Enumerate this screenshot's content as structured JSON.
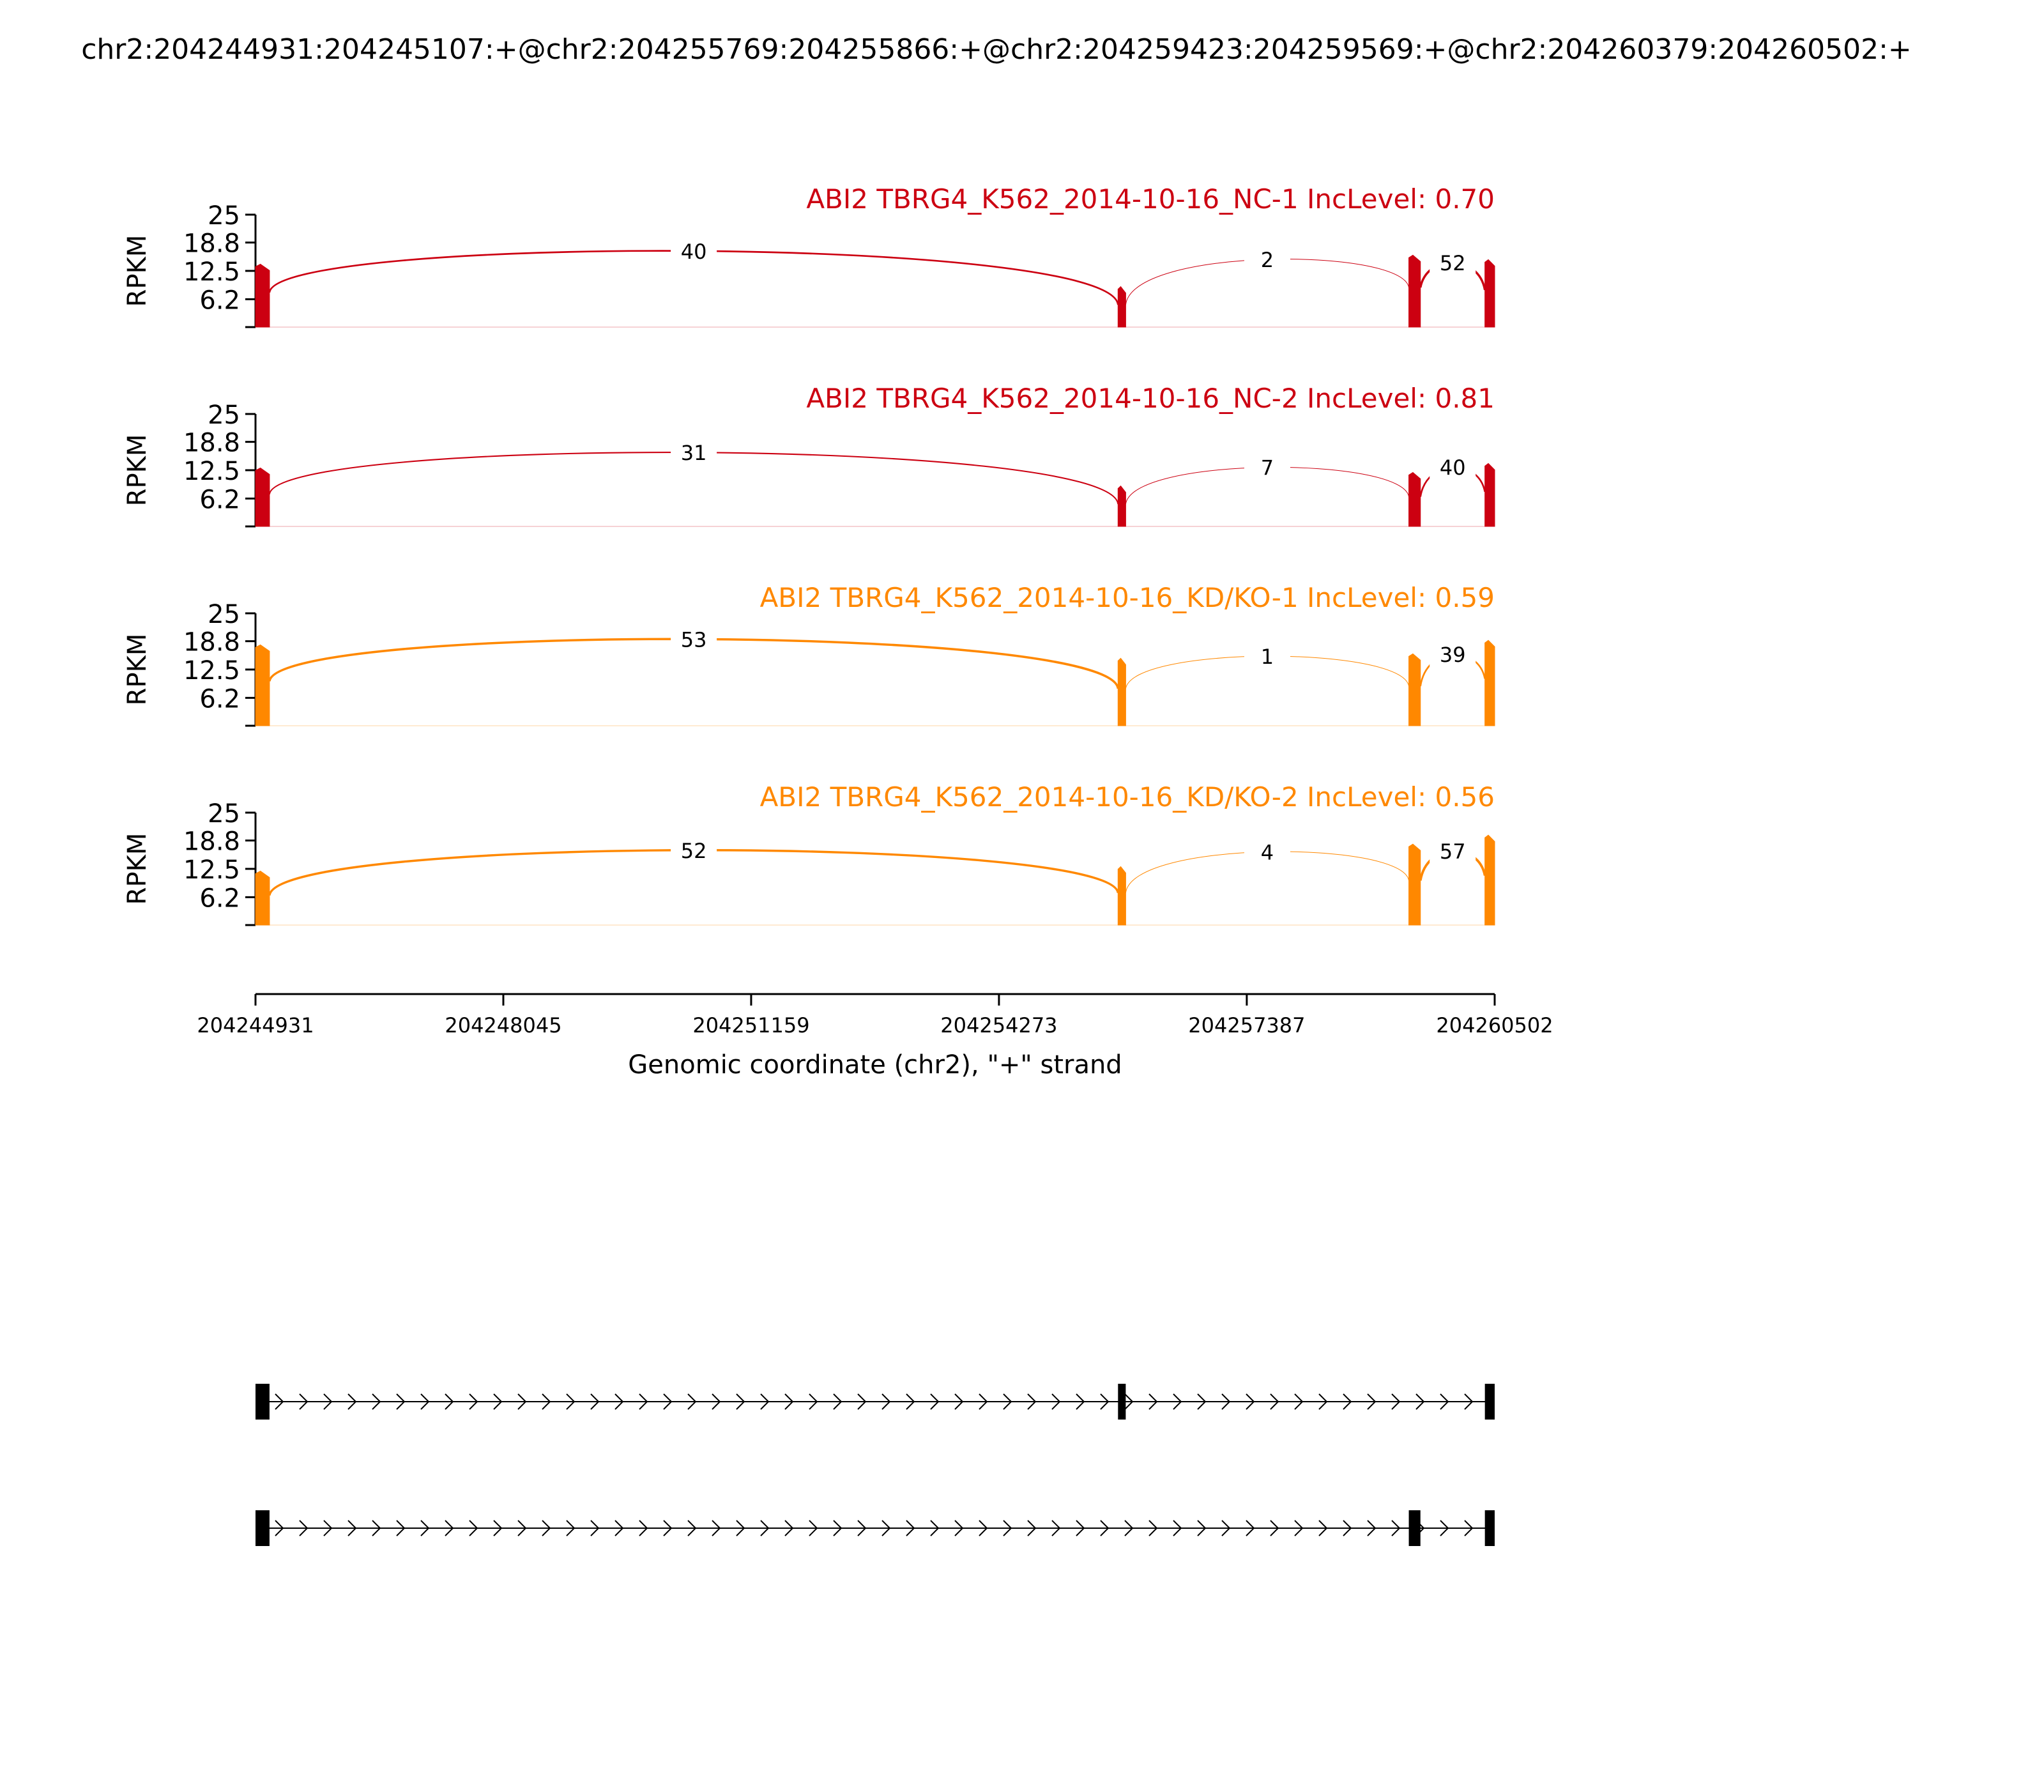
{
  "figure_title": "chr2:204244931:204245107:+@chr2:204255769:204255866:+@chr2:204259423:204259569:+@chr2:204260379:204260502:+",
  "colors": {
    "nc": "#cc0011",
    "kd": "#ff8800",
    "axis": "#000000"
  },
  "chart_data": {
    "type": "sashimi",
    "ylabel": "RPKM",
    "yticks": [
      6.2,
      12.5,
      18.8,
      25
    ],
    "ylim": [
      0,
      25
    ],
    "xlim": [
      204244931,
      204260502
    ],
    "xticks": [
      204244931,
      204248045,
      204251159,
      204254273,
      204257387,
      204260502
    ],
    "xlabel": "Genomic coordinate (chr2), \"+\" strand",
    "exons": [
      {
        "start": 204244931,
        "end": 204245107
      },
      {
        "start": 204255769,
        "end": 204255866
      },
      {
        "start": 204259423,
        "end": 204259569
      },
      {
        "start": 204260379,
        "end": 204260502
      }
    ],
    "panels": [
      {
        "label": "ABI2 TBRG4_K562_2014-10-16_NC-1 IncLevel: 0.70",
        "group": "nc",
        "exon_peaks": [
          14,
          9,
          16,
          15
        ],
        "junctions": [
          {
            "from": 204245107,
            "to": 204255769,
            "count": "40"
          },
          {
            "from": 204255866,
            "to": 204259423,
            "count": "2"
          },
          {
            "from": 204259569,
            "to": 204260379,
            "count": "52"
          }
        ]
      },
      {
        "label": "ABI2 TBRG4_K562_2014-10-16_NC-2 IncLevel: 0.81",
        "group": "nc",
        "exon_peaks": [
          13,
          9,
          12,
          14
        ],
        "junctions": [
          {
            "from": 204245107,
            "to": 204255769,
            "count": "31"
          },
          {
            "from": 204255866,
            "to": 204259423,
            "count": "7"
          },
          {
            "from": 204259569,
            "to": 204260379,
            "count": "40"
          }
        ]
      },
      {
        "label": "ABI2 TBRG4_K562_2014-10-16_KD/KO-1 IncLevel: 0.59",
        "group": "kd",
        "exon_peaks": [
          18,
          15,
          16,
          19
        ],
        "junctions": [
          {
            "from": 204245107,
            "to": 204255769,
            "count": "53"
          },
          {
            "from": 204255866,
            "to": 204259423,
            "count": "1"
          },
          {
            "from": 204259569,
            "to": 204260379,
            "count": "39"
          }
        ]
      },
      {
        "label": "ABI2 TBRG4_K562_2014-10-16_KD/KO-2 IncLevel: 0.56",
        "group": "kd",
        "exon_peaks": [
          12,
          13,
          18,
          20
        ],
        "junctions": [
          {
            "from": 204245107,
            "to": 204255769,
            "count": "52"
          },
          {
            "from": 204255866,
            "to": 204259423,
            "count": "4"
          },
          {
            "from": 204259569,
            "to": 204260379,
            "count": "57"
          }
        ]
      }
    ],
    "isoforms": [
      {
        "exons": [
          0,
          1,
          3
        ]
      },
      {
        "exons": [
          0,
          2,
          3
        ]
      }
    ]
  }
}
